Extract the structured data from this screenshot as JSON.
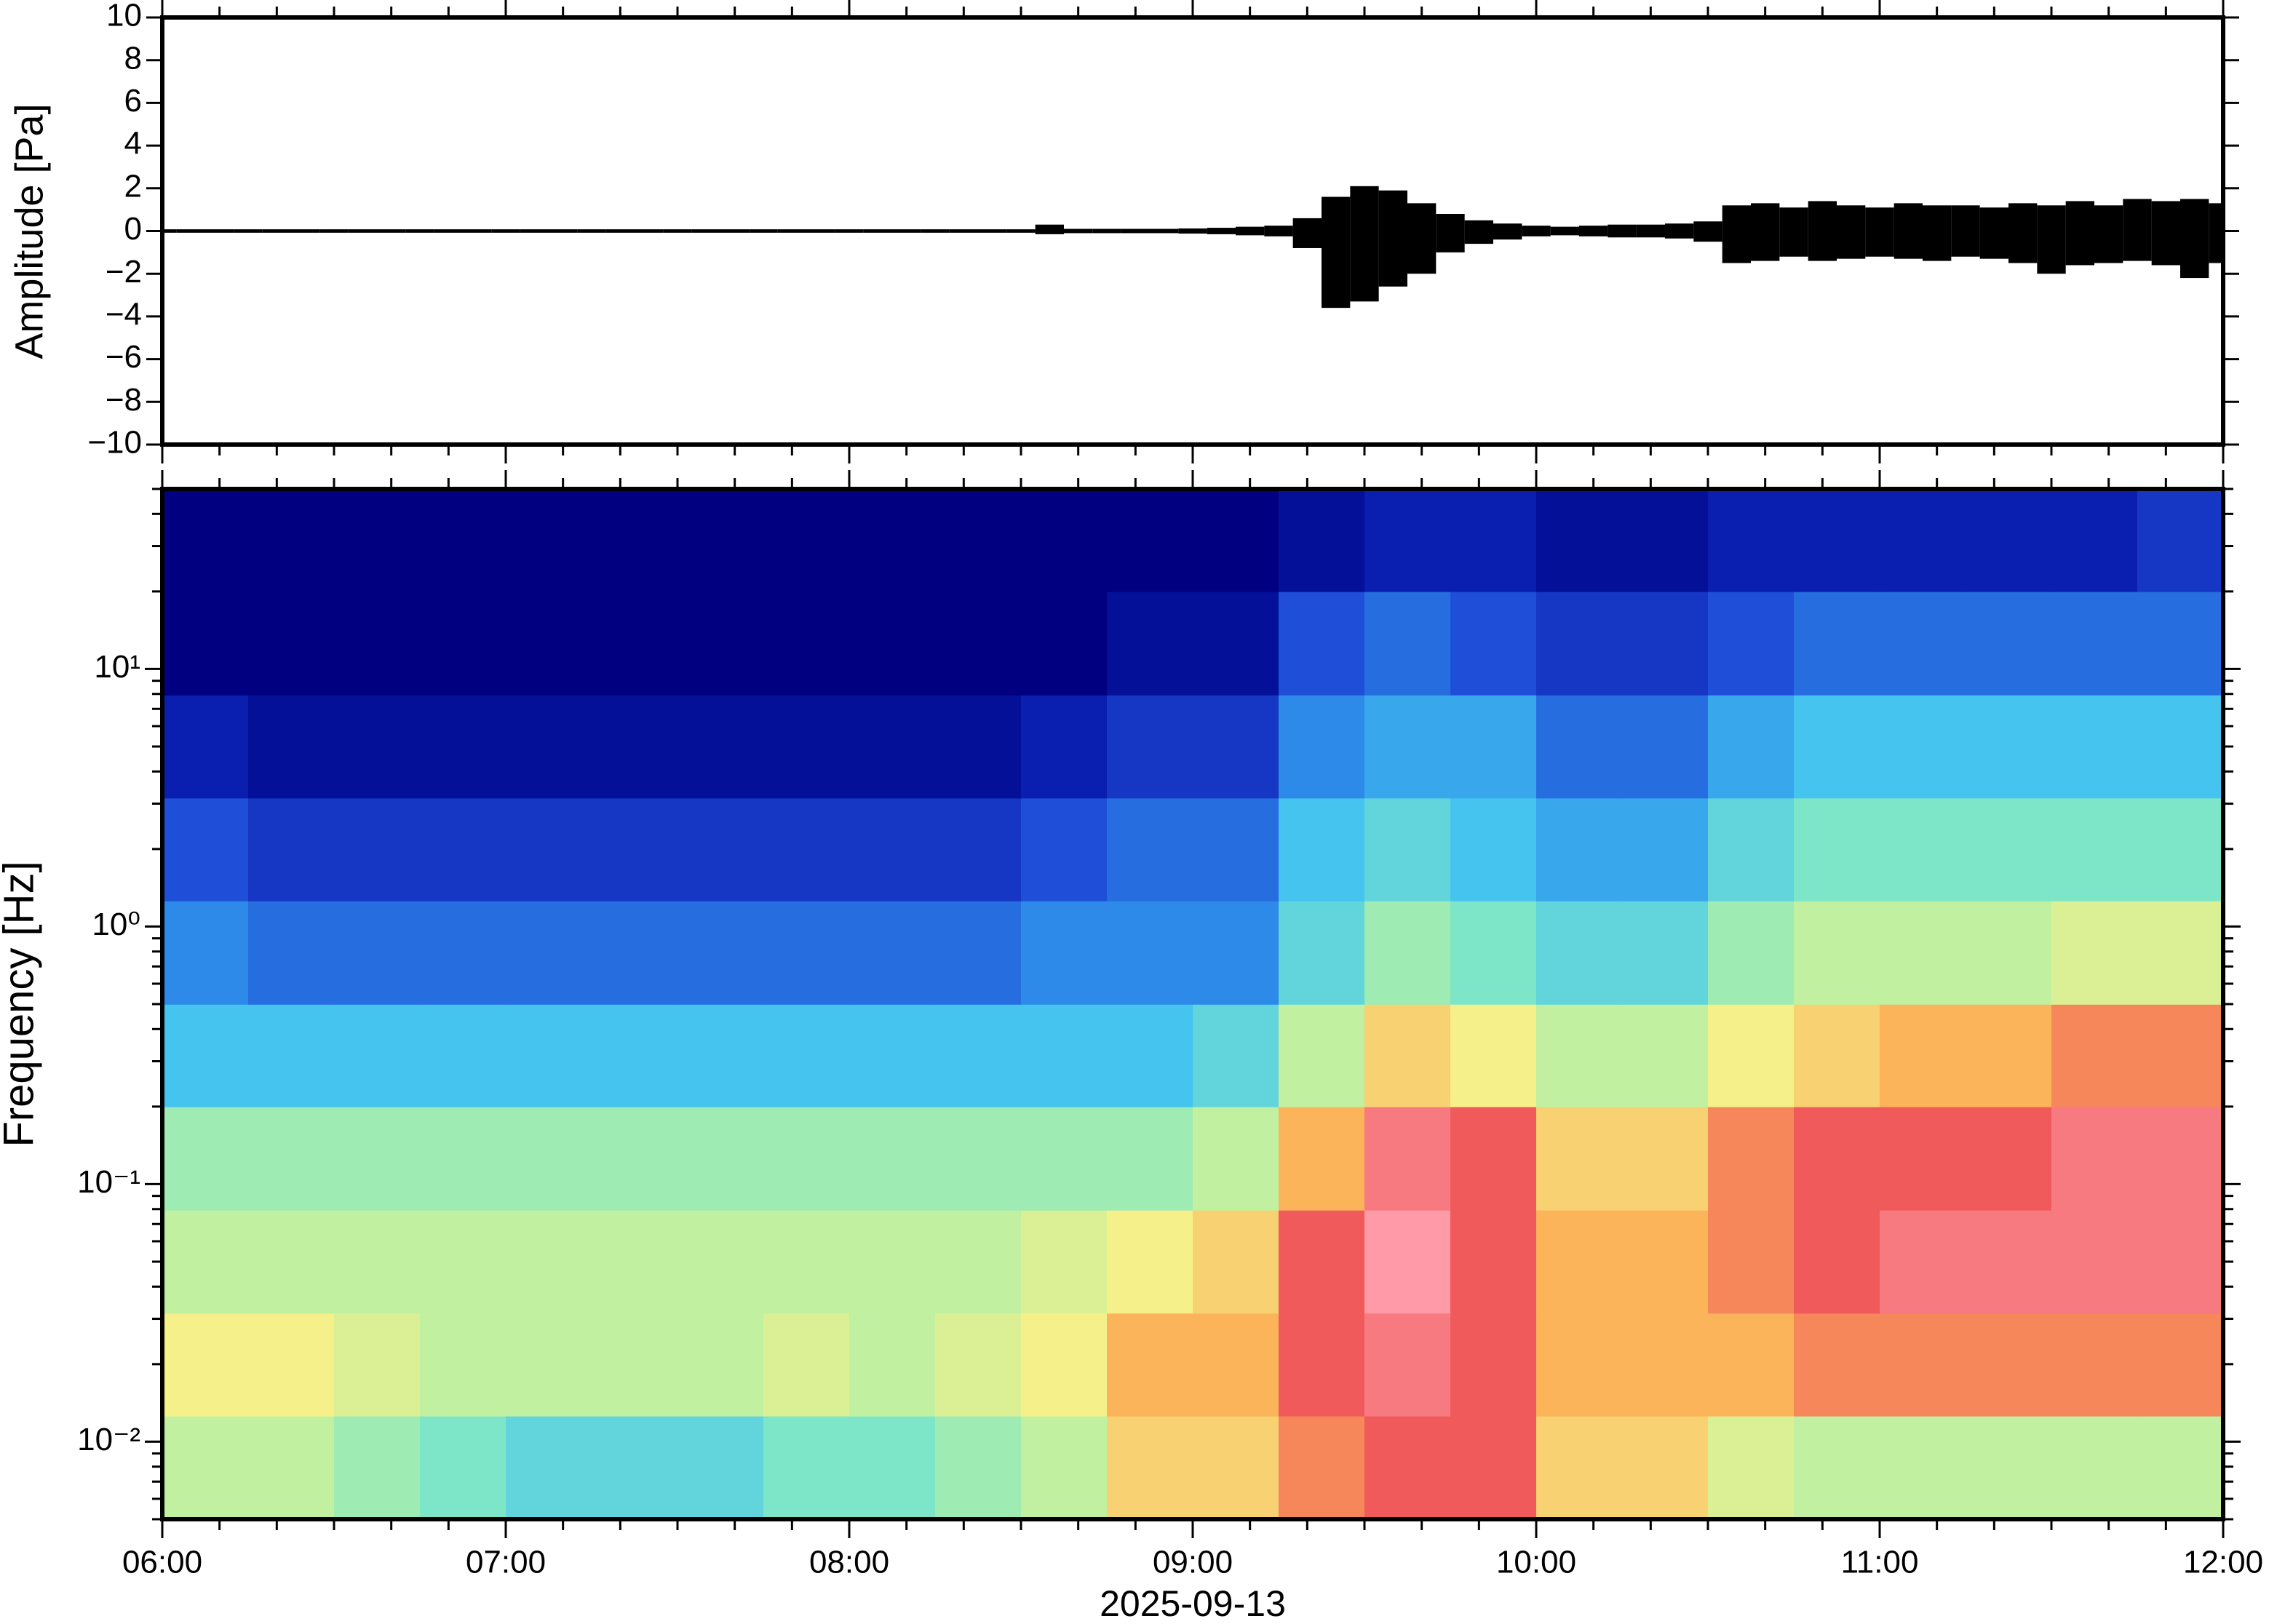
{
  "chart_data": [
    {
      "type": "waveform",
      "ylabel": "Amplitude [Pa]",
      "color": "#000000",
      "ylim": [
        -10,
        10
      ],
      "yticks": [
        10,
        8,
        6,
        4,
        2,
        0,
        {
          "value": -2,
          "label": "−2"
        },
        {
          "value": -4,
          "label": "−4"
        },
        {
          "value": -6,
          "label": "−6"
        },
        {
          "value": -8,
          "label": "−8"
        },
        {
          "value": -10,
          "label": "−10"
        }
      ],
      "x": [
        "06:00",
        "06:05",
        "06:10",
        "06:15",
        "06:20",
        "06:25",
        "06:30",
        "06:35",
        "06:40",
        "06:45",
        "06:50",
        "06:55",
        "07:00",
        "07:05",
        "07:10",
        "07:15",
        "07:20",
        "07:25",
        "07:30",
        "07:35",
        "07:40",
        "07:45",
        "07:50",
        "07:55",
        "08:00",
        "08:05",
        "08:10",
        "08:15",
        "08:20",
        "08:25",
        "08:30",
        "08:35",
        "08:40",
        "08:45",
        "08:50",
        "08:55",
        "09:00",
        "09:05",
        "09:10",
        "09:15",
        "09:20",
        "09:25",
        "09:30",
        "09:35",
        "09:40",
        "09:45",
        "09:50",
        "09:55",
        "10:00",
        "10:05",
        "10:10",
        "10:15",
        "10:20",
        "10:25",
        "10:30",
        "10:35",
        "10:40",
        "10:45",
        "10:50",
        "10:55",
        "11:00",
        "11:05",
        "11:10",
        "11:15",
        "11:20",
        "11:25",
        "11:30",
        "11:35",
        "11:40",
        "11:45",
        "11:50",
        "11:55",
        "12:00"
      ],
      "max": [
        0.08,
        0.08,
        0.08,
        0.08,
        0.08,
        0.08,
        0.08,
        0.08,
        0.08,
        0.08,
        0.08,
        0.08,
        0.08,
        0.08,
        0.08,
        0.08,
        0.08,
        0.08,
        0.08,
        0.08,
        0.08,
        0.08,
        0.08,
        0.08,
        0.08,
        0.08,
        0.08,
        0.08,
        0.08,
        0.08,
        0.08,
        0.3,
        0.1,
        0.1,
        0.1,
        0.1,
        0.12,
        0.15,
        0.2,
        0.25,
        0.6,
        1.6,
        2.1,
        1.9,
        1.3,
        0.8,
        0.5,
        0.35,
        0.25,
        0.2,
        0.25,
        0.3,
        0.3,
        0.35,
        0.45,
        1.2,
        1.3,
        1.1,
        1.4,
        1.2,
        1.1,
        1.3,
        1.2,
        1.2,
        1.1,
        1.3,
        1.2,
        1.4,
        1.2,
        1.5,
        1.4,
        1.5,
        1.3
      ],
      "min": [
        -0.08,
        -0.08,
        -0.08,
        -0.08,
        -0.08,
        -0.08,
        -0.08,
        -0.08,
        -0.08,
        -0.08,
        -0.08,
        -0.08,
        -0.08,
        -0.08,
        -0.08,
        -0.08,
        -0.08,
        -0.08,
        -0.08,
        -0.08,
        -0.08,
        -0.08,
        -0.08,
        -0.08,
        -0.08,
        -0.08,
        -0.08,
        -0.08,
        -0.08,
        -0.08,
        -0.08,
        -0.15,
        -0.1,
        -0.1,
        -0.1,
        -0.1,
        -0.12,
        -0.15,
        -0.2,
        -0.25,
        -0.8,
        -3.6,
        -3.3,
        -2.6,
        -2,
        -1,
        -0.6,
        -0.4,
        -0.25,
        -0.2,
        -0.25,
        -0.3,
        -0.3,
        -0.35,
        -0.5,
        -1.5,
        -1.4,
        -1.2,
        -1.4,
        -1.3,
        -1.2,
        -1.3,
        -1.4,
        -1.2,
        -1.3,
        -1.5,
        -2,
        -1.6,
        -1.5,
        -1.4,
        -1.6,
        -2.2,
        -1.5
      ]
    },
    {
      "type": "heatmap",
      "ylabel": "Frequency [Hz]",
      "xlabel": "2025-09-13",
      "log_y": true,
      "xlim": [
        "06:00",
        "12:00"
      ],
      "xticks": [
        "06:00",
        "07:00",
        "08:00",
        "09:00",
        "10:00",
        "11:00",
        "12:00"
      ],
      "ylim": [
        0.005,
        50
      ],
      "yticks": [
        {
          "value": 0.01,
          "label": "10⁻²"
        },
        {
          "value": 0.1,
          "label": "10⁻¹"
        },
        {
          "value": 1,
          "label": "10⁰"
        },
        {
          "value": 10,
          "label": "10¹"
        }
      ],
      "x_edges": [
        "06:00",
        "06:15",
        "06:30",
        "06:45",
        "07:00",
        "07:15",
        "07:30",
        "07:45",
        "08:00",
        "08:15",
        "08:30",
        "08:45",
        "09:00",
        "09:15",
        "09:30",
        "09:45",
        "10:00",
        "10:15",
        "10:30",
        "10:45",
        "11:00",
        "11:15",
        "11:30",
        "11:45",
        "12:00"
      ],
      "y_edges": [
        0.005,
        0.0126,
        0.0316,
        0.0794,
        0.2,
        0.5,
        1.26,
        3.16,
        7.94,
        20,
        50
      ],
      "clim": [
        0,
        10
      ],
      "colormap": [
        "#000080",
        "#0a1fb0",
        "#1f4fd8",
        "#2d8ae8",
        "#45c4f0",
        "#7ee6c8",
        "#c0f0a0",
        "#f5f08a",
        "#fbb45a",
        "#f05a5a",
        "#ff9aa8"
      ],
      "z": [
        [
          6,
          6,
          5.5,
          5,
          4.5,
          4.5,
          4.5,
          5,
          5,
          5.5,
          6,
          7.5,
          7.5,
          8.5,
          9,
          9,
          7.5,
          7.5,
          6.5,
          6,
          6,
          6,
          6,
          6
        ],
        [
          7,
          7,
          6.5,
          6,
          6,
          6,
          6,
          6.5,
          6,
          6.5,
          7,
          8,
          8,
          9,
          9.5,
          9,
          8,
          8,
          8,
          8.5,
          8.5,
          8.5,
          8.5,
          8.5
        ],
        [
          6,
          6,
          6,
          6,
          6,
          6,
          6,
          6,
          6,
          6,
          6.5,
          7,
          7.5,
          9,
          10,
          9,
          8,
          8,
          8.5,
          9,
          9.5,
          9.5,
          9.5,
          9.5
        ],
        [
          5.5,
          5.5,
          5.5,
          5.5,
          5.5,
          5.5,
          5.5,
          5.5,
          5.5,
          5.5,
          5.5,
          5.5,
          6,
          8,
          9.5,
          9,
          7.5,
          7.5,
          8.5,
          9,
          9,
          9,
          9.5,
          9.5
        ],
        [
          4,
          4,
          4,
          4,
          4,
          4,
          4,
          4,
          4,
          4,
          4,
          4,
          4.5,
          6,
          7.5,
          7,
          6,
          6,
          7,
          7.5,
          8,
          8,
          8.5,
          8.5
        ],
        [
          3,
          2.5,
          2.5,
          2.5,
          2.5,
          2.5,
          2.5,
          2.5,
          2.5,
          2.5,
          3,
          3,
          3,
          4.5,
          5.5,
          5,
          4.5,
          4.5,
          5.5,
          6,
          6,
          6,
          6.5,
          6.5
        ],
        [
          2,
          1.5,
          1.5,
          1.5,
          1.5,
          1.5,
          1.5,
          1.5,
          1.5,
          1.5,
          2,
          2.5,
          2.5,
          4,
          4.5,
          4,
          3.5,
          3.5,
          4.5,
          5,
          5,
          5,
          5,
          5
        ],
        [
          1,
          0.5,
          0.5,
          0.5,
          0.5,
          0.5,
          0.5,
          0.5,
          0.5,
          0.5,
          1,
          1.5,
          1.5,
          3,
          3.5,
          3.5,
          2.5,
          2.5,
          3.5,
          4,
          4,
          4,
          4,
          4
        ],
        [
          0,
          0,
          0,
          0,
          0,
          0,
          0,
          0,
          0,
          0,
          0,
          0.5,
          0.5,
          2,
          2.5,
          2,
          1.5,
          1.5,
          2,
          2.5,
          2.5,
          2.5,
          2.5,
          2.5
        ],
        [
          0,
          0,
          0,
          0,
          0,
          0,
          0,
          0,
          0,
          0,
          0,
          0,
          0,
          0.5,
          1,
          1,
          0.5,
          0.5,
          1,
          1,
          1,
          1,
          1,
          1.5
        ]
      ]
    }
  ]
}
